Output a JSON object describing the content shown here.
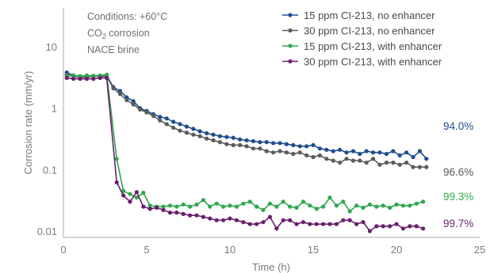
{
  "chart_data": {
    "type": "line",
    "title": "",
    "xlabel": "Time (h)",
    "ylabel": "Corrosion rate (mm/yr)",
    "xlim": [
      0,
      25
    ],
    "ylim": [
      0.01,
      10
    ],
    "yscale": "log",
    "x_ticks": [
      "0",
      "5",
      "10",
      "15",
      "20",
      "25"
    ],
    "y_ticks": [
      "0.01",
      "0.1",
      "1",
      "10"
    ],
    "grid": false,
    "legend_position": "top-right",
    "conditions": [
      "Conditions: +60°C",
      "CO",
      "2",
      " corrosion",
      "NACE brine"
    ],
    "series": [
      {
        "name": "15 ppm CI-213, no enhancer",
        "color": "#1f4e8c",
        "end_label": "94.0%",
        "x": [
          0.2,
          0.6,
          1.0,
          1.4,
          1.8,
          2.2,
          2.6,
          3.0,
          3.4,
          3.8,
          4.2,
          4.6,
          5.0,
          5.4,
          5.8,
          6.2,
          6.6,
          7.0,
          7.4,
          7.8,
          8.2,
          8.6,
          9.0,
          9.4,
          9.8,
          10.2,
          10.6,
          11.0,
          11.4,
          11.8,
          12.2,
          12.6,
          13.0,
          13.4,
          13.8,
          14.2,
          14.6,
          15.0,
          15.4,
          15.8,
          16.2,
          16.6,
          17.0,
          17.4,
          17.8,
          18.2,
          18.6,
          19.0,
          19.4,
          19.8,
          20.2,
          20.6,
          21.0,
          21.4,
          21.8
        ],
        "y": [
          3.8,
          3.4,
          3.3,
          3.3,
          3.35,
          3.35,
          3.4,
          2.2,
          1.9,
          1.5,
          1.3,
          1.0,
          0.9,
          0.8,
          0.72,
          0.68,
          0.6,
          0.55,
          0.5,
          0.46,
          0.42,
          0.39,
          0.37,
          0.35,
          0.34,
          0.33,
          0.31,
          0.3,
          0.29,
          0.28,
          0.28,
          0.27,
          0.27,
          0.26,
          0.25,
          0.24,
          0.24,
          0.25,
          0.22,
          0.21,
          0.2,
          0.21,
          0.19,
          0.2,
          0.18,
          0.2,
          0.19,
          0.19,
          0.18,
          0.2,
          0.17,
          0.19,
          0.16,
          0.2,
          0.15
        ]
      },
      {
        "name": "30 ppm CI-213, no enhancer",
        "color": "#5b5b5b",
        "end_label": "96.6%",
        "x": [
          0.2,
          0.6,
          1.0,
          1.4,
          1.8,
          2.2,
          2.6,
          3.0,
          3.4,
          3.8,
          4.2,
          4.6,
          5.0,
          5.4,
          5.8,
          6.2,
          6.6,
          7.0,
          7.4,
          7.8,
          8.2,
          8.6,
          9.0,
          9.4,
          9.8,
          10.2,
          10.6,
          11.0,
          11.4,
          11.8,
          12.2,
          12.6,
          13.0,
          13.4,
          13.8,
          14.2,
          14.6,
          15.0,
          15.4,
          15.8,
          16.2,
          16.6,
          17.0,
          17.4,
          17.8,
          18.2,
          18.6,
          19.0,
          19.4,
          19.8,
          20.2,
          20.6,
          21.0,
          21.4,
          21.8
        ],
        "y": [
          3.5,
          3.3,
          3.2,
          3.2,
          3.3,
          3.3,
          3.3,
          2.1,
          1.7,
          1.35,
          1.15,
          0.95,
          0.85,
          0.75,
          0.63,
          0.55,
          0.48,
          0.43,
          0.4,
          0.37,
          0.35,
          0.32,
          0.3,
          0.28,
          0.26,
          0.25,
          0.25,
          0.24,
          0.22,
          0.22,
          0.2,
          0.19,
          0.2,
          0.19,
          0.18,
          0.19,
          0.17,
          0.16,
          0.17,
          0.15,
          0.14,
          0.13,
          0.15,
          0.14,
          0.14,
          0.13,
          0.15,
          0.12,
          0.13,
          0.13,
          0.12,
          0.13,
          0.11,
          0.11,
          0.11
        ]
      },
      {
        "name": "15 ppm CI-213, with enhancer",
        "color": "#2fa84f",
        "end_label": "99.3%",
        "x": [
          0.2,
          0.6,
          1.0,
          1.4,
          1.8,
          2.2,
          2.6,
          3.2,
          3.6,
          4.0,
          4.4,
          4.8,
          5.2,
          5.6,
          6.0,
          6.4,
          6.8,
          7.2,
          7.6,
          8.0,
          8.4,
          8.8,
          9.2,
          9.6,
          10.0,
          10.4,
          10.8,
          11.2,
          11.6,
          12.0,
          12.4,
          12.8,
          13.2,
          13.6,
          14.0,
          14.4,
          14.8,
          15.2,
          15.6,
          16.0,
          16.4,
          16.8,
          17.2,
          17.6,
          18.0,
          18.4,
          18.8,
          19.2,
          19.6,
          20.0,
          20.4,
          20.8,
          21.2,
          21.6
        ],
        "y": [
          3.3,
          3.4,
          3.3,
          3.4,
          3.35,
          3.4,
          3.5,
          0.15,
          0.045,
          0.04,
          0.035,
          0.042,
          0.026,
          0.025,
          0.025,
          0.026,
          0.025,
          0.027,
          0.025,
          0.027,
          0.032,
          0.025,
          0.028,
          0.025,
          0.026,
          0.025,
          0.028,
          0.03,
          0.025,
          0.022,
          0.028,
          0.025,
          0.03,
          0.025,
          0.024,
          0.03,
          0.026,
          0.023,
          0.025,
          0.035,
          0.026,
          0.03,
          0.021,
          0.026,
          0.024,
          0.027,
          0.025,
          0.026,
          0.024,
          0.027,
          0.026,
          0.026,
          0.028,
          0.03
        ]
      },
      {
        "name": "30 ppm CI-213, with enhancer",
        "color": "#6a1f6e",
        "end_label": "99.7%",
        "x": [
          0.2,
          0.6,
          1.0,
          1.4,
          1.8,
          2.2,
          2.6,
          3.2,
          3.6,
          4.0,
          4.4,
          4.8,
          5.2,
          5.6,
          6.0,
          6.4,
          6.8,
          7.2,
          7.6,
          8.0,
          8.4,
          8.8,
          9.2,
          9.6,
          10.0,
          10.4,
          10.8,
          11.2,
          11.6,
          12.0,
          12.4,
          12.8,
          13.2,
          13.6,
          14.0,
          14.4,
          14.8,
          15.2,
          15.6,
          16.0,
          16.4,
          16.8,
          17.2,
          17.6,
          18.0,
          18.4,
          18.8,
          19.2,
          19.6,
          20.0,
          20.4,
          20.8,
          21.2,
          21.6
        ],
        "y": [
          3.1,
          3.0,
          3.0,
          3.0,
          3.0,
          3.1,
          3.1,
          0.062,
          0.038,
          0.03,
          0.043,
          0.025,
          0.023,
          0.024,
          0.022,
          0.02,
          0.02,
          0.019,
          0.018,
          0.018,
          0.017,
          0.016,
          0.015,
          0.015,
          0.016,
          0.015,
          0.014,
          0.013,
          0.013,
          0.014,
          0.017,
          0.011,
          0.015,
          0.015,
          0.013,
          0.014,
          0.013,
          0.013,
          0.013,
          0.013,
          0.013,
          0.015,
          0.015,
          0.013,
          0.014,
          0.01,
          0.012,
          0.012,
          0.012,
          0.013,
          0.011,
          0.012,
          0.012,
          0.011
        ]
      }
    ]
  }
}
